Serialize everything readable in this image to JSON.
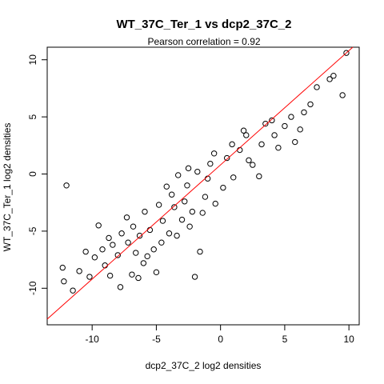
{
  "chart_data": {
    "type": "scatter",
    "title": "WT_37C_Ter_1 vs dcp2_37C_2",
    "subtitle": "Pearson correlation =  0.92",
    "xlabel": "dcp2_37C_2 log2 densities",
    "ylabel": "WT_37C_Ter_1 log2 densities",
    "xlim": [
      -13.5,
      10.8
    ],
    "ylim": [
      -13.2,
      11.1
    ],
    "x_ticks": [
      -10,
      -5,
      0,
      5,
      10
    ],
    "x_tick_labels": [
      "-10",
      "-5",
      "0",
      "5",
      "10"
    ],
    "y_ticks": [
      -10,
      -5,
      0,
      5,
      10
    ],
    "y_tick_labels": [
      "-10",
      "-5",
      "0",
      "5",
      "10"
    ],
    "grid": false,
    "marker": "open-circle",
    "point_color": "#000000",
    "trend_line": {
      "slope": 1.0,
      "intercept": 0.8,
      "color": "#ff0000"
    },
    "series": [
      {
        "points": [
          [
            -12.0,
            -1.0
          ],
          [
            9.8,
            10.6
          ],
          [
            9.5,
            6.9
          ],
          [
            -12.3,
            -8.2
          ],
          [
            -12.2,
            -9.4
          ],
          [
            -11.5,
            -10.2
          ],
          [
            -9.5,
            -4.5
          ],
          [
            -8.7,
            -5.6
          ],
          [
            -7.3,
            -3.8
          ],
          [
            -6.9,
            -8.8
          ],
          [
            -6.4,
            -9.1
          ],
          [
            -5.0,
            -8.6
          ],
          [
            -4.2,
            -1.1
          ],
          [
            -3.3,
            -0.1
          ],
          [
            -2.5,
            0.5
          ],
          [
            -2.0,
            -9.0
          ],
          [
            -1.6,
            -6.8
          ],
          [
            -0.5,
            1.8
          ],
          [
            2.5,
            0.8
          ],
          [
            3.0,
            -0.2
          ],
          [
            4.5,
            2.3
          ],
          [
            5.8,
            2.8
          ],
          [
            6.2,
            3.9
          ],
          [
            7.5,
            7.6
          ],
          [
            8.5,
            8.3
          ],
          [
            8.8,
            8.6
          ],
          [
            5.0,
            4.2
          ],
          [
            4.0,
            4.7
          ],
          [
            2.0,
            3.4
          ],
          [
            1.5,
            2.1
          ],
          [
            0.5,
            1.4
          ],
          [
            -1.0,
            -0.4
          ],
          [
            -2.8,
            -2.4
          ],
          [
            -3.6,
            -2.9
          ],
          [
            -4.5,
            -4.1
          ],
          [
            -5.5,
            -4.9
          ],
          [
            -6.3,
            -5.4
          ],
          [
            -7.2,
            -6.0
          ],
          [
            -8.0,
            -7.1
          ],
          [
            -9.0,
            -8.0
          ],
          [
            -10.2,
            -9.0
          ],
          [
            -11.0,
            -8.5
          ],
          [
            -10.5,
            -6.8
          ],
          [
            -9.8,
            -7.3
          ],
          [
            -8.6,
            -8.9
          ],
          [
            -7.8,
            -9.9
          ],
          [
            -6.0,
            -7.8
          ],
          [
            -5.2,
            -6.6
          ],
          [
            -4.0,
            -5.2
          ],
          [
            -3.0,
            -4.0
          ],
          [
            -2.2,
            -3.3
          ],
          [
            -1.2,
            -2.0
          ],
          [
            0.2,
            -1.2
          ],
          [
            1.0,
            -0.3
          ],
          [
            2.2,
            1.2
          ],
          [
            3.2,
            2.6
          ],
          [
            4.2,
            3.4
          ],
          [
            5.5,
            5.0
          ],
          [
            6.5,
            5.4
          ],
          [
            7.0,
            6.1
          ],
          [
            -3.8,
            -1.8
          ],
          [
            -2.6,
            -1.0
          ],
          [
            -1.8,
            0.2
          ],
          [
            -0.8,
            0.9
          ],
          [
            0.9,
            2.6
          ],
          [
            1.8,
            3.8
          ],
          [
            3.5,
            4.4
          ],
          [
            -6.8,
            -4.6
          ],
          [
            -7.7,
            -5.2
          ],
          [
            -8.4,
            -6.2
          ],
          [
            -9.2,
            -6.6
          ],
          [
            -5.9,
            -3.3
          ],
          [
            -4.8,
            -2.7
          ],
          [
            -6.6,
            -6.9
          ],
          [
            -5.7,
            -7.2
          ],
          [
            -4.6,
            -6.0
          ],
          [
            -3.4,
            -5.4
          ],
          [
            -2.4,
            -4.6
          ],
          [
            -1.4,
            -3.4
          ],
          [
            -0.4,
            -2.6
          ]
        ]
      }
    ]
  }
}
